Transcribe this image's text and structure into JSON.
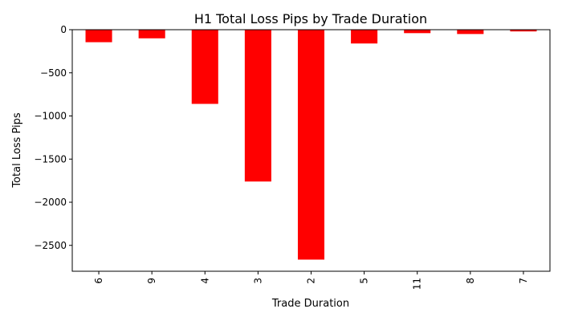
{
  "chart_data": {
    "type": "bar",
    "title": "H1 Total Loss Pips by Trade Duration",
    "xlabel": "Trade Duration",
    "ylabel": "Total Loss Pips",
    "categories": [
      "6",
      "9",
      "4",
      "3",
      "2",
      "5",
      "11",
      "8",
      "7"
    ],
    "values": [
      -145,
      -100,
      -860,
      -1760,
      -2665,
      -160,
      -40,
      -50,
      -20
    ],
    "ylim": [
      -2800,
      0
    ],
    "yticks": [
      0,
      -500,
      -1000,
      -1500,
      -2000,
      -2500
    ],
    "ytick_labels": [
      "0",
      "−500",
      "−1000",
      "−1500",
      "−2000",
      "−2500"
    ],
    "bar_color": "#ff0000",
    "grid": false,
    "legend": "none"
  }
}
